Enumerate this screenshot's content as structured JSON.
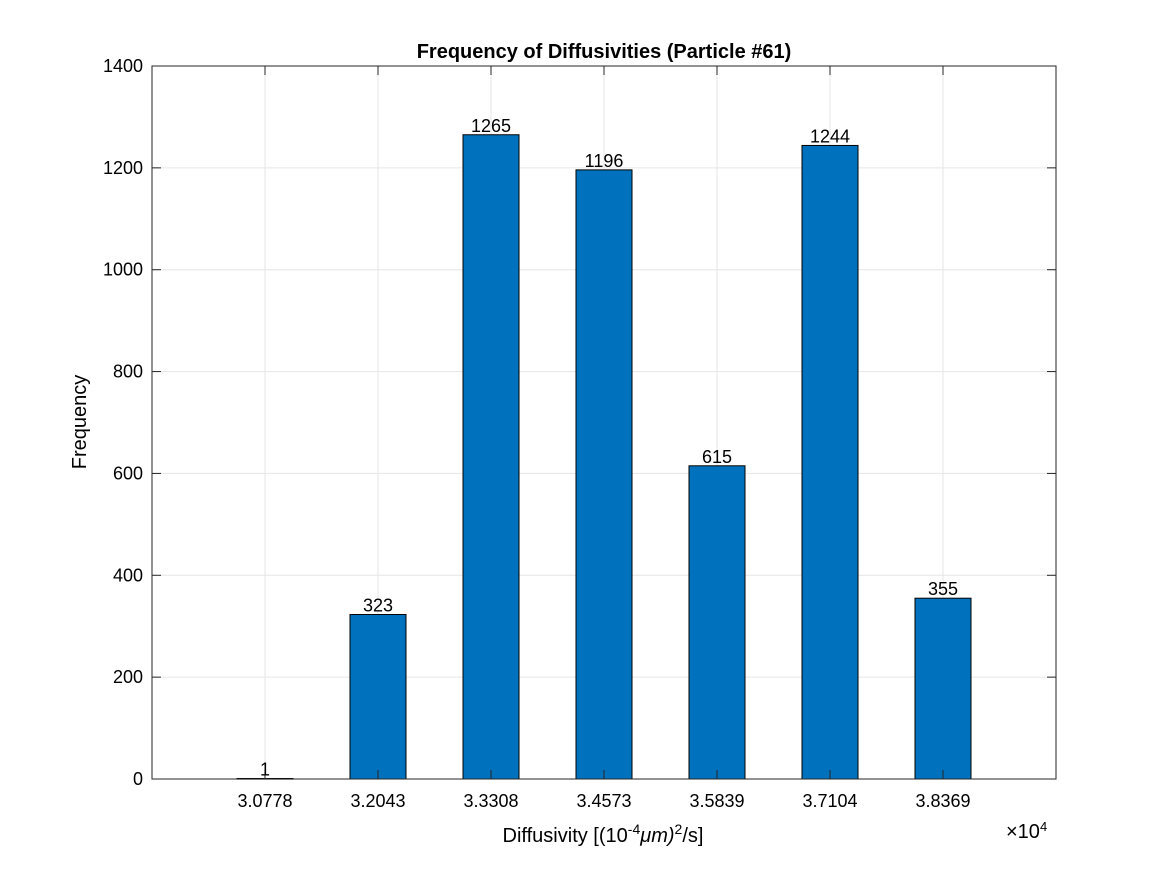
{
  "chart_data": {
    "type": "bar",
    "title": "Frequency of Diffusivities (Particle #61)",
    "xlabel": {
      "prefix": "Diffusivity [(10",
      "sup1": "-4",
      "mid": "μm)",
      "sup2": "2",
      "suffix": "/s]"
    },
    "ylabel": "Frequency",
    "x_exponent_label": {
      "base": "×10",
      "exp": "4"
    },
    "categories": [
      "3.0778",
      "3.2043",
      "3.3308",
      "3.4573",
      "3.5839",
      "3.7104",
      "3.8369"
    ],
    "values": [
      1,
      323,
      1265,
      1196,
      615,
      1244,
      355
    ],
    "data_labels": [
      "1",
      "323",
      "1265",
      "1196",
      "615",
      "1244",
      "355"
    ],
    "ylim": [
      0,
      1400
    ],
    "yticks": [
      0,
      200,
      400,
      600,
      800,
      1000,
      1200,
      1400
    ],
    "grid": true,
    "bar_color": "#0072BD",
    "grid_color": "#e6e6e6"
  }
}
